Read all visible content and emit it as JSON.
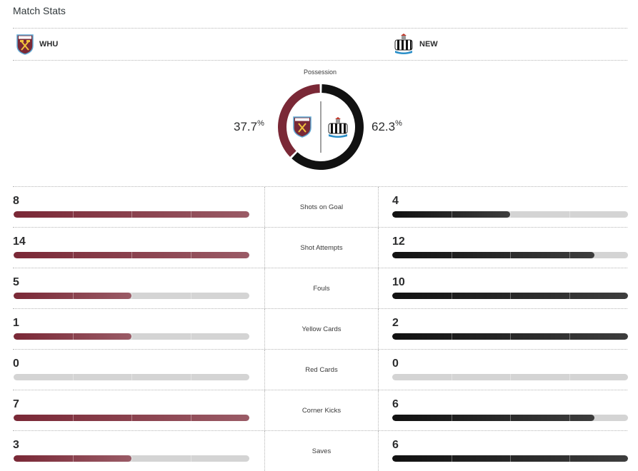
{
  "page": {
    "title": "Match Stats"
  },
  "teams": {
    "home": {
      "abbr": "WHU",
      "color": "#7a2836",
      "icon": "west-ham-crest-icon"
    },
    "away": {
      "abbr": "NEW",
      "color": "#111111",
      "icon": "newcastle-crest-icon"
    }
  },
  "possession": {
    "label": "Possession",
    "home_value": "37.7",
    "away_value": "62.3",
    "unit": "%",
    "home": 37.7,
    "away": 62.3
  },
  "stats": [
    {
      "label": "Shots on Goal",
      "home": "8",
      "away": "4",
      "home_fill": 1.0,
      "away_fill": 0.5
    },
    {
      "label": "Shot Attempts",
      "home": "14",
      "away": "12",
      "home_fill": 1.0,
      "away_fill": 0.857
    },
    {
      "label": "Fouls",
      "home": "5",
      "away": "10",
      "home_fill": 0.5,
      "away_fill": 1.0
    },
    {
      "label": "Yellow Cards",
      "home": "1",
      "away": "2",
      "home_fill": 0.5,
      "away_fill": 1.0
    },
    {
      "label": "Red Cards",
      "home": "0",
      "away": "0",
      "home_fill": 0,
      "away_fill": 0
    },
    {
      "label": "Corner Kicks",
      "home": "7",
      "away": "6",
      "home_fill": 1.0,
      "away_fill": 0.857
    },
    {
      "label": "Saves",
      "home": "3",
      "away": "6",
      "home_fill": 0.5,
      "away_fill": 1.0
    }
  ]
}
